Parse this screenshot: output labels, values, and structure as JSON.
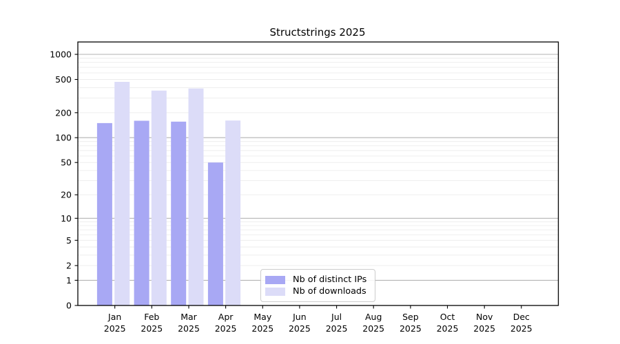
{
  "figure": {
    "background": "#ffffff",
    "spine_color": "#000000"
  },
  "chart_data": {
    "type": "bar",
    "title": "Structstrings 2025",
    "xlabel": "",
    "ylabel": "",
    "x_scale": "categorical",
    "y_scale": "log1p",
    "ylim": [
      0,
      1405
    ],
    "categories": [
      "Jan",
      "Feb",
      "Mar",
      "Apr",
      "May",
      "Jun",
      "Jul",
      "Aug",
      "Sep",
      "Oct",
      "Nov",
      "Dec"
    ],
    "category_year": "2025",
    "series": [
      {
        "name": "Nb of distinct IPs",
        "color": "#a8a8f4",
        "values": [
          150,
          160,
          156,
          50,
          0,
          0,
          0,
          0,
          0,
          0,
          0,
          0
        ]
      },
      {
        "name": "Nb of downloads",
        "color": "#dcdcf8",
        "values": [
          468,
          368,
          390,
          161,
          0,
          0,
          0,
          0,
          0,
          0,
          0,
          0
        ]
      }
    ],
    "y_ticks": [
      0,
      1,
      2,
      5,
      10,
      20,
      50,
      100,
      200,
      500,
      1000
    ],
    "grid": {
      "major_values": [
        1,
        10,
        100,
        1000
      ],
      "minor_values": [
        2,
        3,
        4,
        5,
        6,
        7,
        8,
        9,
        20,
        30,
        40,
        50,
        60,
        70,
        80,
        90,
        200,
        300,
        400,
        500,
        600,
        700,
        800,
        900
      ],
      "major_color": "#b2b2b2",
      "minor_color": "#ececec"
    },
    "legend_position": "lower-center"
  }
}
